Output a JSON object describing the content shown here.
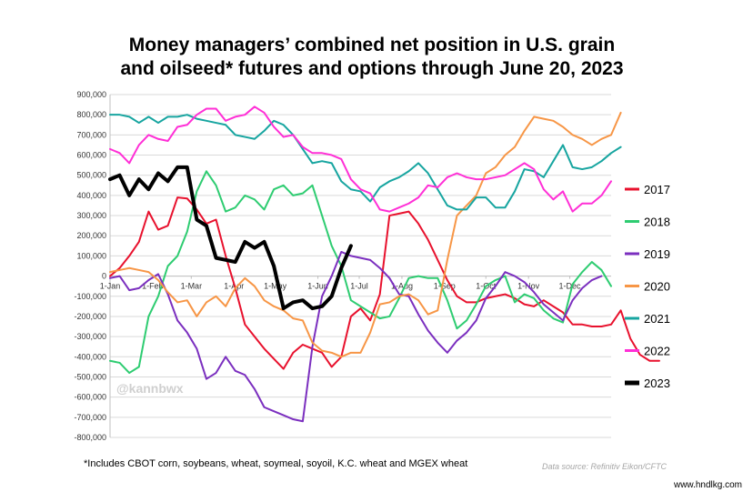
{
  "chart_data": {
    "type": "line",
    "title_line1": "Money managers’ combined net position in U.S. grain",
    "title_line2": "and oilseed* futures and options through June 20, 2023",
    "footnote": "*Includes CBOT corn, soybeans, wheat, soymeal, soyoil, K.C. wheat and MGEX wheat",
    "source": "Data source: Refinitiv Eikon/CFTC",
    "watermark_handle": "@kannbwx",
    "site_watermark": "www.hndlkg.com",
    "x_ticks": [
      "1-Jan",
      "1-Feb",
      "1-Mar",
      "1-Apr",
      "1-May",
      "1-Jun",
      "1-Jul",
      "1-Aug",
      "1-Sep",
      "1-Oct",
      "1-Nov",
      "1-Dec"
    ],
    "x_tick_weeks": [
      0,
      4.43,
      8.43,
      12.86,
      17.14,
      21.57,
      25.86,
      30.29,
      34.71,
      39,
      43.43,
      47.71
    ],
    "x_range_weeks": [
      0,
      52
    ],
    "ylim": [
      -800000,
      900000
    ],
    "y_ticks": [
      900000,
      800000,
      700000,
      600000,
      500000,
      400000,
      300000,
      200000,
      100000,
      0,
      -100000,
      -200000,
      -300000,
      -400000,
      -500000,
      -600000,
      -700000,
      -800000
    ],
    "y_tick_labels": [
      "900,000",
      "800,000",
      "700,000",
      "600,000",
      "500,000",
      "400,000",
      "300,000",
      "200,000",
      "100,000",
      "0",
      "-100,000",
      "-200,000",
      "-300,000",
      "-400,000",
      "-500,000",
      "-600,000",
      "-700,000",
      "-800,000"
    ],
    "grid": true,
    "legend_position": "right",
    "series": [
      {
        "name": "2017",
        "color": "#e8112d",
        "width": 2,
        "values": [
          0,
          40,
          100,
          170,
          320,
          230,
          250,
          390,
          385,
          330,
          260,
          280,
          100,
          -60,
          -240,
          -300,
          -360,
          -410,
          -460,
          -380,
          -340,
          -360,
          -380,
          -450,
          -400,
          -200,
          -160,
          -220,
          -90,
          300,
          310,
          320,
          260,
          180,
          80,
          -20,
          -100,
          -130,
          -130,
          -110,
          -100,
          -90,
          -110,
          -140,
          -150,
          -120,
          -150,
          -180,
          -240,
          -240,
          -250,
          -250,
          -240,
          -170,
          -310,
          -390,
          -420,
          -420
        ]
      },
      {
        "name": "2018",
        "color": "#2ecc71",
        "width": 2,
        "values": [
          -420,
          -430,
          -480,
          -450,
          -200,
          -100,
          50,
          100,
          220,
          420,
          520,
          450,
          320,
          340,
          400,
          380,
          330,
          430,
          450,
          400,
          410,
          450,
          300,
          150,
          50,
          -120,
          -150,
          -180,
          -210,
          -200,
          -110,
          -10,
          0,
          -10,
          -10,
          -120,
          -260,
          -220,
          -140,
          -50,
          -20,
          0,
          -130,
          -90,
          -110,
          -170,
          -210,
          -230,
          -40,
          20,
          70,
          30,
          -50
        ]
      },
      {
        "name": "2019",
        "color": "#7b2fbf",
        "width": 2,
        "values": [
          -10,
          0,
          -70,
          -60,
          -20,
          10,
          -90,
          -220,
          -280,
          -360,
          -510,
          -480,
          -400,
          -470,
          -490,
          -560,
          -650,
          -670,
          -690,
          -710,
          -720,
          -350,
          -100,
          0,
          120,
          100,
          90,
          80,
          40,
          -10,
          -90,
          -100,
          -190,
          -270,
          -330,
          -380,
          -320,
          -280,
          -220,
          -110,
          -50,
          20,
          0,
          -30,
          -80,
          -140,
          -180,
          -220,
          -120,
          -60,
          -20,
          0
        ]
      },
      {
        "name": "2020",
        "color": "#f79646",
        "width": 2,
        "values": [
          20,
          30,
          40,
          30,
          20,
          -20,
          -80,
          -130,
          -120,
          -200,
          -130,
          -100,
          -150,
          -60,
          -10,
          -50,
          -120,
          -150,
          -170,
          -210,
          -220,
          -330,
          -370,
          -380,
          -400,
          -380,
          -380,
          -280,
          -140,
          -130,
          -100,
          -90,
          -120,
          -190,
          -170,
          80,
          300,
          350,
          400,
          510,
          540,
          600,
          640,
          720,
          790,
          780,
          770,
          740,
          700,
          680,
          650,
          680,
          700,
          810
        ]
      },
      {
        "name": "2021",
        "color": "#17a5a0",
        "width": 2,
        "values": [
          800,
          800,
          790,
          760,
          790,
          760,
          790,
          790,
          800,
          780,
          770,
          760,
          750,
          700,
          690,
          680,
          720,
          770,
          750,
          700,
          630,
          560,
          570,
          560,
          470,
          430,
          420,
          370,
          440,
          470,
          490,
          520,
          560,
          510,
          430,
          350,
          330,
          330,
          390,
          390,
          340,
          340,
          420,
          530,
          520,
          490,
          570,
          650,
          540,
          530,
          540,
          570,
          610,
          640
        ]
      },
      {
        "name": "2022",
        "color": "#ff2fd6",
        "width": 2,
        "values": [
          630,
          610,
          560,
          650,
          700,
          680,
          670,
          740,
          750,
          800,
          830,
          830,
          770,
          790,
          800,
          840,
          810,
          740,
          690,
          700,
          640,
          610,
          610,
          600,
          580,
          480,
          430,
          410,
          330,
          320,
          340,
          360,
          390,
          450,
          440,
          490,
          510,
          490,
          480,
          480,
          490,
          500,
          530,
          560,
          530,
          430,
          380,
          420,
          320,
          360,
          360,
          400,
          470
        ]
      },
      {
        "name": "2023",
        "color": "#000000",
        "width": 4,
        "values": [
          480,
          500,
          400,
          480,
          430,
          510,
          470,
          540,
          540,
          280,
          250,
          90,
          80,
          70,
          170,
          140,
          170,
          50,
          -160,
          -130,
          -120,
          -160,
          -150,
          -100,
          40,
          150
        ]
      }
    ]
  }
}
